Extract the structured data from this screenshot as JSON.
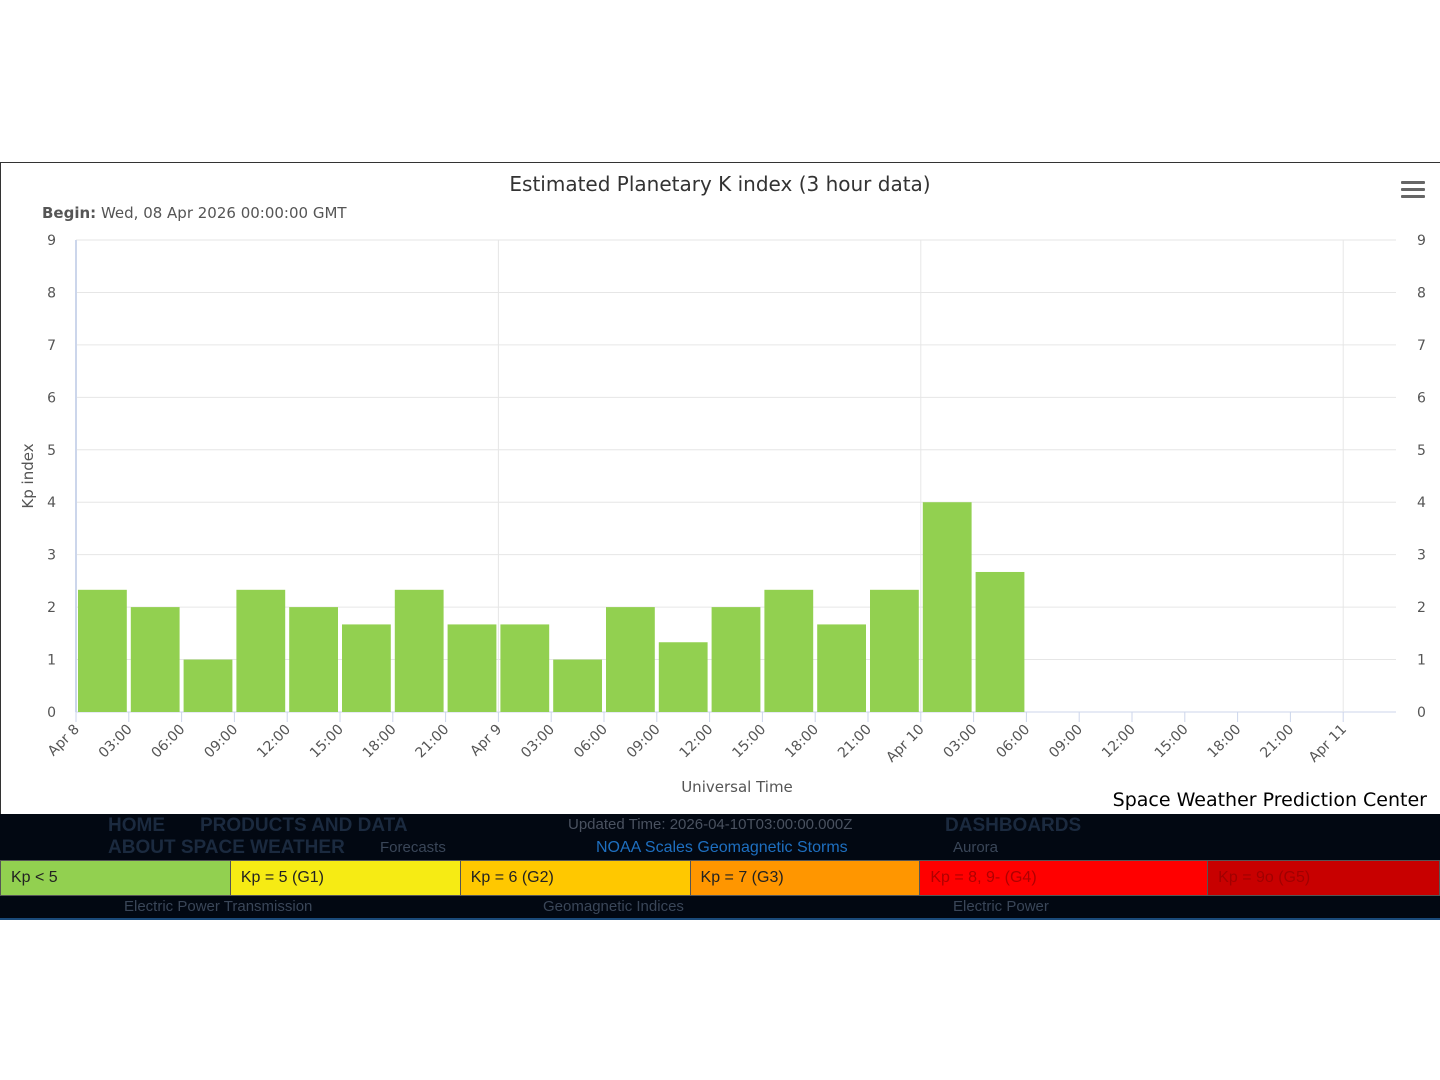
{
  "chart_data": {
    "type": "bar",
    "title": "Estimated Planetary K index (3 hour data)",
    "subtitle_label": "Begin:",
    "subtitle_value": "Wed, 08 Apr 2026 00:00:00 GMT",
    "xlabel": "Universal Time",
    "ylabel": "Kp index",
    "ylim": [
      0,
      9
    ],
    "yticks": [
      "0",
      "1",
      "2",
      "3",
      "4",
      "5",
      "6",
      "7",
      "8",
      "9"
    ],
    "xticks": [
      "Apr 8",
      "03:00",
      "06:00",
      "09:00",
      "12:00",
      "15:00",
      "18:00",
      "21:00",
      "Apr 9",
      "03:00",
      "06:00",
      "09:00",
      "12:00",
      "15:00",
      "18:00",
      "21:00",
      "Apr 10",
      "03:00",
      "06:00",
      "09:00",
      "12:00",
      "15:00",
      "18:00",
      "21:00",
      "Apr 11"
    ],
    "values": [
      2.33,
      2,
      1,
      2.33,
      2,
      1.67,
      2.33,
      1.67,
      1.67,
      1,
      2,
      1.33,
      2,
      2.33,
      1.67,
      2.33,
      4,
      2.67
    ],
    "bar_color": "#92d050",
    "grid": true,
    "credit": "Space Weather Prediction Center"
  },
  "footer": {
    "updated": "Updated Time: 2026-04-10T03:00:00.000Z",
    "scales_link": "NOAA Scales Geomagnetic Storms",
    "bg_nav": {
      "home": "HOME",
      "about": "ABOUT SPACE WEATHER",
      "products": "PRODUCTS AND DATA",
      "dashboards": "DASHBOARDS",
      "forecasts": "Forecasts",
      "aurora": "Aurora",
      "ept": "Electric Power Transmission",
      "geo": "Geomagnetic Indices",
      "ep": "Electric Power"
    }
  },
  "legend": [
    {
      "label": "Kp < 5",
      "color": "#92d050",
      "text": "#222"
    },
    {
      "label": "Kp = 5 (G1)",
      "color": "#f6eb14",
      "text": "#222"
    },
    {
      "label": "Kp = 6 (G2)",
      "color": "#ffc800",
      "text": "#222"
    },
    {
      "label": "Kp = 7 (G3)",
      "color": "#ff9600",
      "text": "#222"
    },
    {
      "label": "Kp = 8, 9- (G4)",
      "color": "#ff0000",
      "text": "#b00000"
    },
    {
      "label": "Kp = 9o (G5)",
      "color": "#c80000",
      "text": "#a00000"
    }
  ]
}
